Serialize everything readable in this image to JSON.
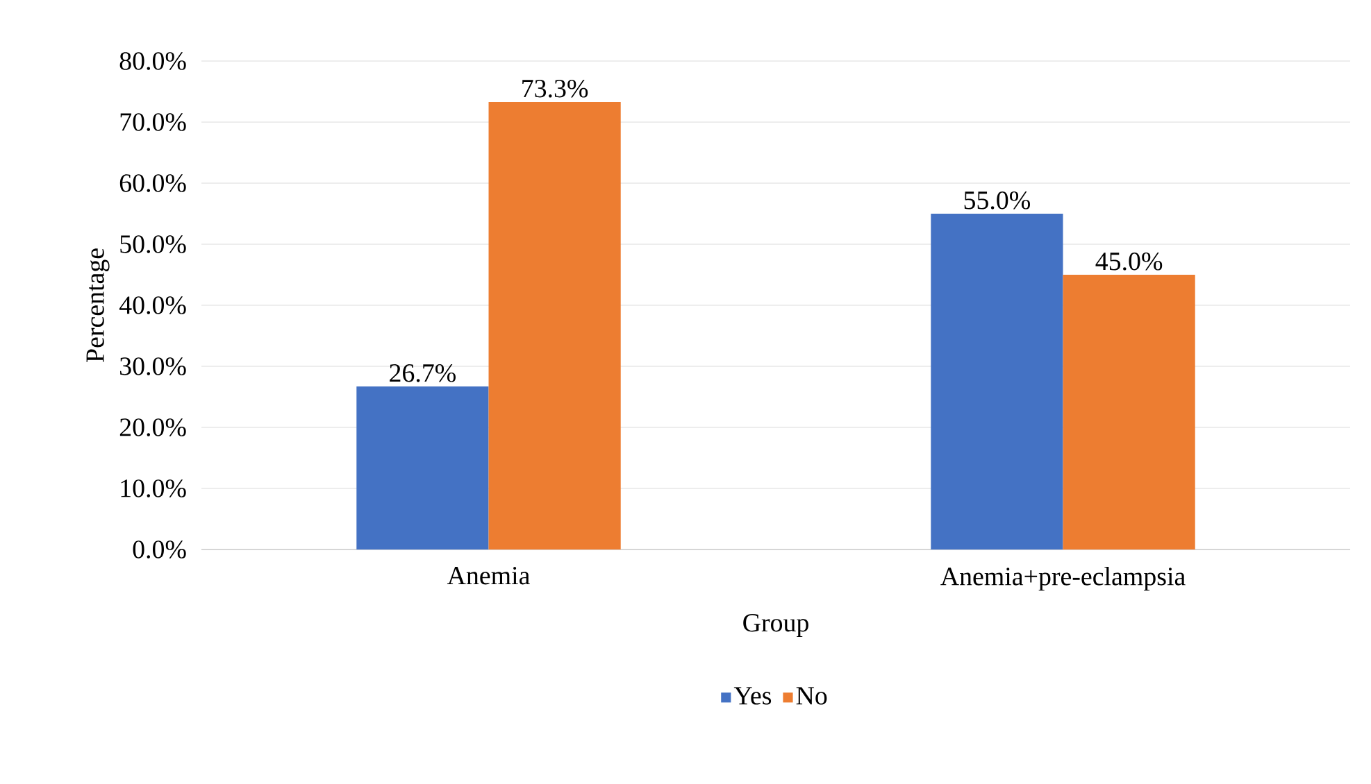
{
  "chart_data": {
    "type": "bar",
    "xlabel": "Group",
    "ylabel": "Percentage",
    "categories": [
      "Anemia",
      "Anemia+pre-eclampsia"
    ],
    "series": [
      {
        "name": "Yes",
        "color": "#4472c4",
        "values": [
          26.7,
          55.0
        ],
        "value_labels": [
          "26.7%",
          "55.0%"
        ]
      },
      {
        "name": "No",
        "color": "#ed7d31",
        "values": [
          73.3,
          45.0
        ],
        "value_labels": [
          "73.3%",
          "45.0%"
        ]
      }
    ],
    "ylim": [
      0,
      80
    ],
    "yticks": [
      {
        "value": 0,
        "label": "0.0%"
      },
      {
        "value": 10,
        "label": "10.0%"
      },
      {
        "value": 20,
        "label": "20.0%"
      },
      {
        "value": 30,
        "label": "30.0%"
      },
      {
        "value": 40,
        "label": "40.0%"
      },
      {
        "value": 50,
        "label": "50.0%"
      },
      {
        "value": 60,
        "label": "60.0%"
      },
      {
        "value": 70,
        "label": "70.0%"
      },
      {
        "value": 80,
        "label": "80.0%"
      }
    ],
    "grid": "y",
    "legend": "bottom"
  }
}
